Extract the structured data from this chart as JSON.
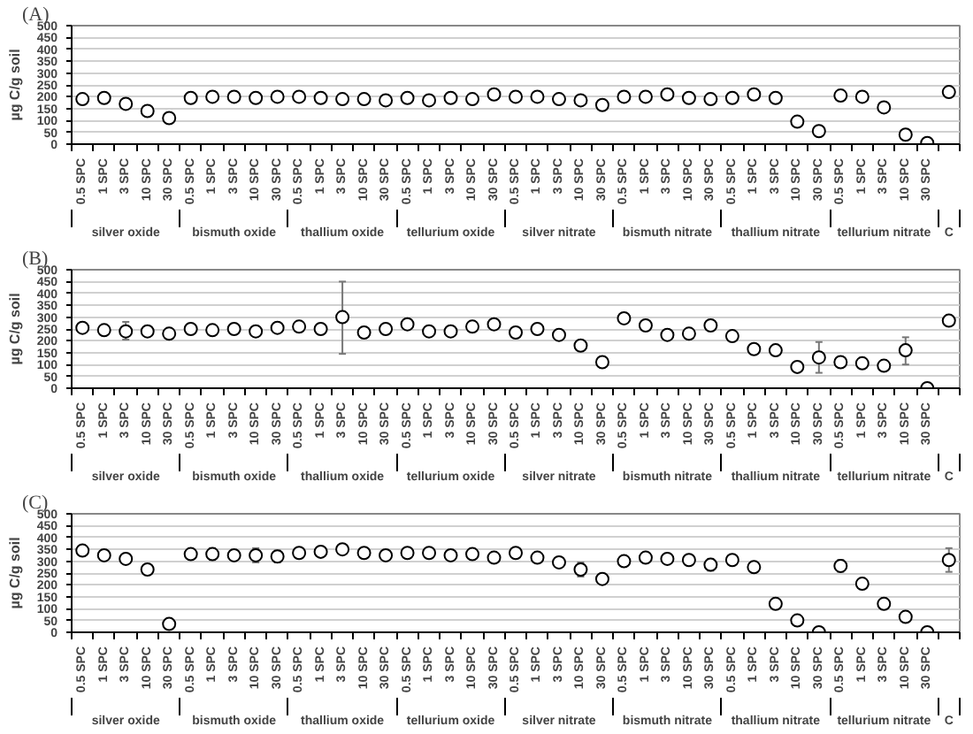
{
  "chart_data": [
    {
      "type": "scatter",
      "title": "(A)",
      "ylabel": "µg C/g soil",
      "categories": [
        "0.5 SPC",
        "1 SPC",
        "3 SPC",
        "10 SPC",
        "30 SPC",
        "0.5 SPC",
        "1 SPC",
        "3 SPC",
        "10 SPC",
        "30 SPC",
        "0.5 SPC",
        "1 SPC",
        "3 SPC",
        "10 SPC",
        "30 SPC",
        "0.5 SPC",
        "1 SPC",
        "3 SPC",
        "10 SPC",
        "30 SPC",
        "0.5 SPC",
        "1 SPC",
        "3 SPC",
        "10 SPC",
        "30 SPC",
        "0.5 SPC",
        "1 SPC",
        "3 SPC",
        "10 SPC",
        "30 SPC",
        "0.5 SPC",
        "1 SPC",
        "3 SPC",
        "10 SPC",
        "30 SPC",
        "0.5 SPC",
        "1 SPC",
        "3 SPC",
        "10 SPC",
        "30 SPC",
        null
      ],
      "annotations": [
        "silver oxide",
        "bismuth oxide",
        "thallium oxide",
        "tellurium oxide",
        "silver nitrate",
        "bismuth nitrate",
        "thallium nitrate",
        "tellurium nitrate",
        "C"
      ],
      "values": [
        190,
        195,
        170,
        140,
        110,
        195,
        200,
        200,
        195,
        200,
        200,
        195,
        190,
        190,
        185,
        195,
        185,
        195,
        190,
        210,
        200,
        200,
        190,
        185,
        165,
        200,
        200,
        210,
        195,
        190,
        195,
        210,
        195,
        95,
        55,
        205,
        200,
        155,
        40,
        5,
        220
      ],
      "ylim": [
        0,
        500
      ],
      "yticks": [
        0,
        50,
        100,
        150,
        200,
        250,
        300,
        350,
        400,
        450,
        500
      ],
      "grid": "y",
      "marker": "circle",
      "color": "#000000"
    },
    {
      "type": "scatter",
      "title": "(B)",
      "ylabel": "µg C/g soil",
      "categories": [
        "0.5 SPC",
        "1 SPC",
        "3 SPC",
        "10 SPC",
        "30 SPC",
        "0.5 SPC",
        "1 SPC",
        "3 SPC",
        "10 SPC",
        "30 SPC",
        "0.5 SPC",
        "1 SPC",
        "3 SPC",
        "10 SPC",
        "30 SPC",
        "0.5 SPC",
        "1 SPC",
        "3 SPC",
        "10 SPC",
        "30 SPC",
        "0.5 SPC",
        "1 SPC",
        "3 SPC",
        "10 SPC",
        "30 SPC",
        "0.5 SPC",
        "1 SPC",
        "3 SPC",
        "10 SPC",
        "30 SPC",
        "0.5 SPC",
        "1 SPC",
        "3 SPC",
        "10 SPC",
        "30 SPC",
        "0.5 SPC",
        "1 SPC",
        "3 SPC",
        "10 SPC",
        "30 SPC",
        null
      ],
      "annotations": [
        "silver oxide",
        "bismuth oxide",
        "thallium oxide",
        "tellurium oxide",
        "silver nitrate",
        "bismuth nitrate",
        "thallium nitrate",
        "tellurium nitrate",
        "C"
      ],
      "values": [
        255,
        245,
        240,
        240,
        230,
        250,
        245,
        250,
        240,
        255,
        260,
        250,
        300,
        235,
        250,
        270,
        240,
        240,
        260,
        270,
        235,
        250,
        225,
        180,
        110,
        295,
        265,
        225,
        230,
        265,
        220,
        165,
        160,
        90,
        130,
        110,
        105,
        95,
        160,
        0,
        285
      ],
      "errors": [
        null,
        null,
        [
          205,
          280
        ],
        null,
        null,
        null,
        null,
        null,
        [
          220,
          255
        ],
        null,
        null,
        null,
        [
          145,
          450
        ],
        null,
        null,
        null,
        null,
        null,
        null,
        null,
        null,
        null,
        null,
        null,
        null,
        [
          280,
          310
        ],
        null,
        null,
        null,
        [
          250,
          280
        ],
        null,
        null,
        null,
        null,
        [
          65,
          195
        ],
        null,
        null,
        null,
        [
          100,
          215
        ],
        null,
        null
      ],
      "ylim": [
        0,
        500
      ],
      "yticks": [
        0,
        50,
        100,
        150,
        200,
        250,
        300,
        350,
        400,
        450,
        500
      ],
      "grid": "y",
      "marker": "circle",
      "color": "#000000"
    },
    {
      "type": "scatter",
      "title": "(C)",
      "ylabel": "µg C/g soil",
      "categories": [
        "0.5 SPC",
        "1 SPC",
        "3 SPC",
        "10 SPC",
        "30 SPC",
        "0.5 SPC",
        "1 SPC",
        "3 SPC",
        "10 SPC",
        "30 SPC",
        "0.5 SPC",
        "1 SPC",
        "3 SPC",
        "10 SPC",
        "30 SPC",
        "0.5 SPC",
        "1 SPC",
        "3 SPC",
        "10 SPC",
        "30 SPC",
        "0.5 SPC",
        "1 SPC",
        "3 SPC",
        "10 SPC",
        "30 SPC",
        "0.5 SPC",
        "1 SPC",
        "3 SPC",
        "10 SPC",
        "30 SPC",
        "0.5 SPC",
        "1 SPC",
        "3 SPC",
        "10 SPC",
        "30 SPC",
        "0.5 SPC",
        "1 SPC",
        "3 SPC",
        "10 SPC",
        "30 SPC",
        null
      ],
      "annotations": [
        "silver oxide",
        "bismuth oxide",
        "thallium oxide",
        "tellurium oxide",
        "silver nitrate",
        "bismuth nitrate",
        "thallium nitrate",
        "tellurium nitrate",
        "C"
      ],
      "values": [
        345,
        325,
        310,
        265,
        35,
        330,
        330,
        325,
        325,
        320,
        335,
        340,
        350,
        335,
        325,
        335,
        335,
        325,
        330,
        315,
        335,
        315,
        295,
        265,
        225,
        300,
        315,
        310,
        305,
        285,
        305,
        275,
        120,
        50,
        0,
        280,
        205,
        120,
        65,
        0,
        305
      ],
      "errors": [
        null,
        null,
        null,
        null,
        null,
        null,
        25,
        null,
        30,
        25,
        null,
        null,
        null,
        null,
        null,
        null,
        null,
        null,
        null,
        null,
        null,
        null,
        null,
        30,
        null,
        null,
        null,
        null,
        null,
        25,
        null,
        null,
        null,
        null,
        null,
        25,
        null,
        null,
        null,
        null,
        50
      ],
      "ylim": [
        0,
        500
      ],
      "yticks": [
        0,
        50,
        100,
        150,
        200,
        250,
        300,
        350,
        400,
        450,
        500
      ],
      "grid": "y",
      "marker": "circle",
      "color": "#000000"
    }
  ]
}
